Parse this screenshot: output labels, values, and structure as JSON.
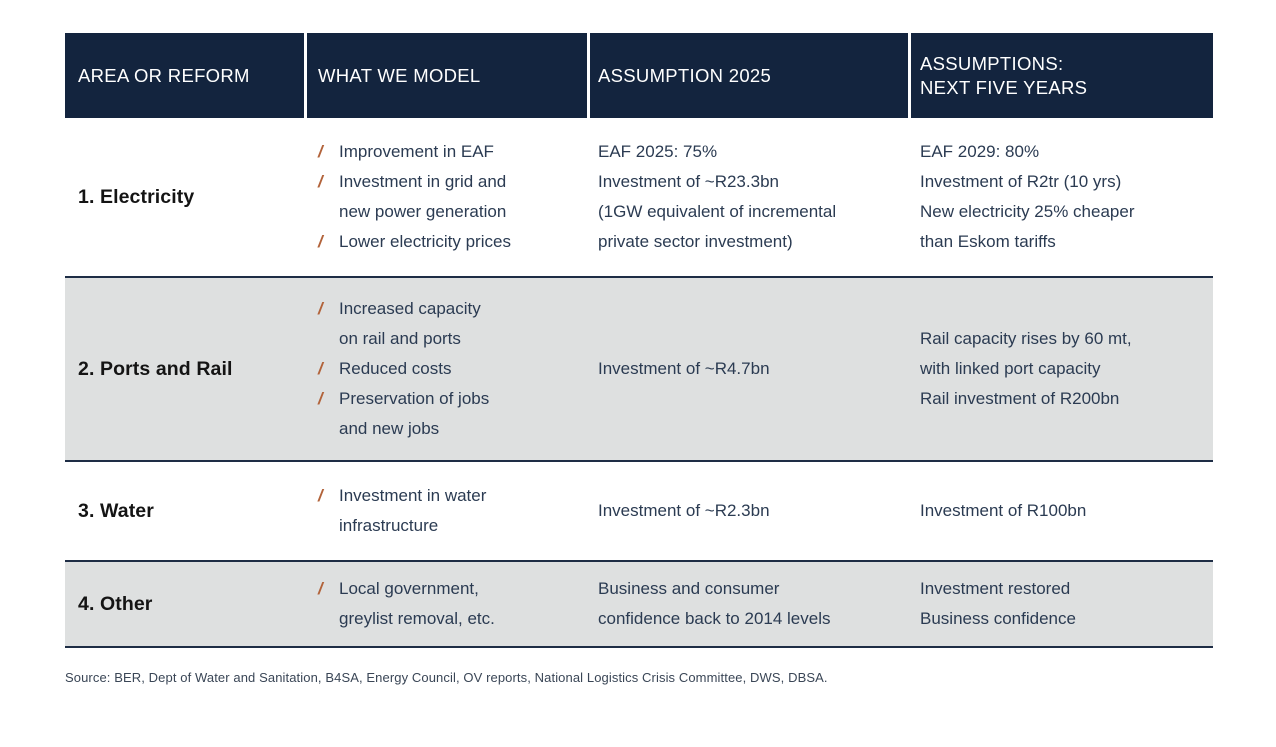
{
  "colors": {
    "header_bg": "#13243E",
    "header_text": "#FFFFFF",
    "row_alt_bg": "#DEE0E0",
    "row_border": "#1E2D45",
    "bullet_slash": "#B2633A",
    "body_text": "#2B3B52",
    "area_text": "#141414",
    "source_text": "#3A4656"
  },
  "table": {
    "headers": [
      "AREA OR REFORM",
      "WHAT WE MODEL",
      "ASSUMPTION 2025",
      "ASSUMPTIONS:\nNEXT FIVE YEARS"
    ],
    "rows": [
      {
        "area": "1. Electricity",
        "what_we_model": [
          "Improvement in EAF",
          "Investment in grid and\nnew power generation",
          "Lower electricity prices"
        ],
        "assumption_2025": "EAF 2025: 75%\nInvestment of ~R23.3bn\n(1GW equivalent of incremental\nprivate sector investment)",
        "next_five_years": "EAF 2029: 80%\nInvestment of R2tr (10 yrs)\nNew electricity 25% cheaper\nthan Eskom tariffs"
      },
      {
        "area": "2. Ports and Rail",
        "what_we_model": [
          "Increased capacity\non rail and ports",
          "Reduced costs",
          "Preservation of jobs\nand new jobs"
        ],
        "assumption_2025": "Investment of ~R4.7bn",
        "next_five_years": "Rail capacity rises by 60 mt,\nwith linked port capacity\nRail investment of R200bn"
      },
      {
        "area": "3. Water",
        "what_we_model": [
          "Investment in water\ninfrastructure"
        ],
        "assumption_2025": "Investment of ~R2.3bn",
        "next_five_years": "Investment of R100bn"
      },
      {
        "area": "4. Other",
        "what_we_model": [
          "Local government,\ngreylist removal, etc."
        ],
        "assumption_2025": "Business and consumer\nconfidence back to 2014 levels",
        "next_five_years": "Investment restored\nBusiness confidence"
      }
    ]
  },
  "source": "Source: BER, Dept of Water and Sanitation, B4SA, Energy Council, OV reports, National Logistics Crisis Committee, DWS, DBSA."
}
